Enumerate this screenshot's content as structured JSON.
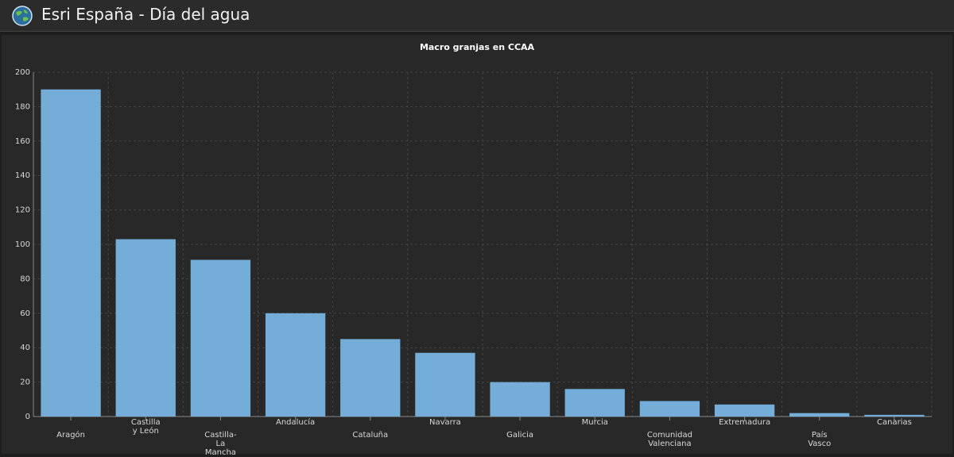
{
  "header": {
    "title": "Esri España - Día del agua"
  },
  "chart_data": {
    "type": "bar",
    "title": "Macro granjas en CCAA",
    "categories": [
      "Aragón",
      "Castilla y León",
      "Castilla-La Mancha",
      "Andalucía",
      "Cataluña",
      "Navarra",
      "Galicia",
      "Murcia",
      "Comunidad Valenciana",
      "Extremadura",
      "País Vasco",
      "Canarias"
    ],
    "values": [
      190,
      103,
      91,
      60,
      45,
      37,
      20,
      16,
      9,
      7,
      2,
      1
    ],
    "color": "#74add8",
    "ylim": [
      0,
      200
    ],
    "yticks": [
      0,
      20,
      40,
      60,
      80,
      100,
      120,
      140,
      160,
      180,
      200
    ],
    "grid": true
  }
}
